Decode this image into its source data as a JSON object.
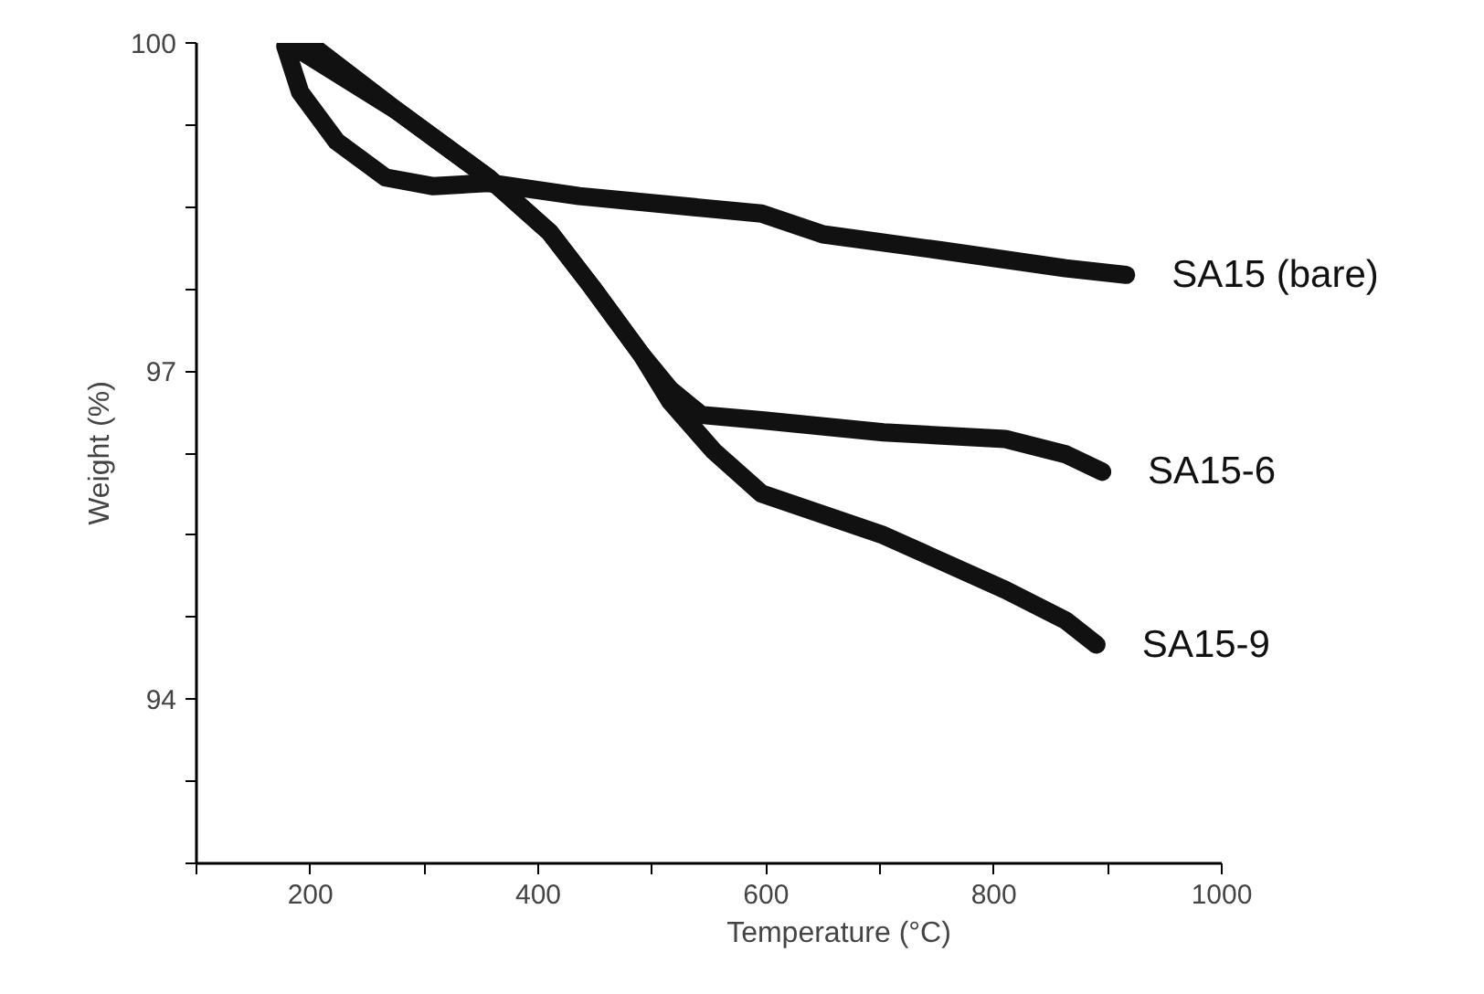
{
  "chart_data": {
    "type": "line",
    "xlabel": "Temperature (°C)",
    "ylabel": "Weight (%)",
    "xlim": [
      100,
      1000
    ],
    "ylim": [
      92.5,
      100
    ],
    "xticks": [
      {
        "value": 100,
        "label": null
      },
      200,
      {
        "value": 300,
        "label": null
      },
      400,
      {
        "value": 500,
        "label": null
      },
      600,
      {
        "value": 700,
        "label": null
      },
      800,
      {
        "value": 900,
        "label": null
      },
      1000
    ],
    "yticks": [
      {
        "value": 92.5,
        "label": null
      },
      {
        "value": 93.25,
        "label": null
      },
      94,
      {
        "value": 94.75,
        "label": null
      },
      {
        "value": 95.5,
        "label": null
      },
      {
        "value": 96.25,
        "label": null
      },
      97,
      {
        "value": 97.75,
        "label": null
      },
      {
        "value": 98.5,
        "label": null
      },
      {
        "value": 99.25,
        "label": null
      },
      100
    ],
    "grid": false,
    "line_style": "solid",
    "series": [
      {
        "name": "SA15 (bare)",
        "color": "#111111",
        "x": [
          178,
          191,
          223,
          266,
          308,
          356,
          436,
          596,
          650,
          756,
          863,
          916
        ],
        "values": [
          99.97,
          99.55,
          99.1,
          98.77,
          98.69,
          98.72,
          98.6,
          98.44,
          98.25,
          98.1,
          97.94,
          97.88
        ]
      },
      {
        "name": "SA15-6",
        "color": "#111111",
        "x": [
          185,
          276,
          356,
          410,
          447,
          490,
          516,
          543,
          596,
          703,
          810,
          863,
          895
        ],
        "values": [
          99.97,
          99.38,
          98.77,
          98.27,
          97.77,
          97.16,
          96.83,
          96.6,
          96.55,
          96.44,
          96.38,
          96.24,
          96.08
        ]
      },
      {
        "name": "SA15-9",
        "color": "#111111",
        "x": [
          202,
          276,
          356,
          410,
          447,
          490,
          516,
          554,
          596,
          703,
          810,
          863,
          890
        ],
        "values": [
          99.97,
          99.38,
          98.77,
          98.27,
          97.77,
          97.16,
          96.72,
          96.27,
          95.88,
          95.5,
          95.0,
          94.72,
          94.5
        ]
      }
    ]
  }
}
